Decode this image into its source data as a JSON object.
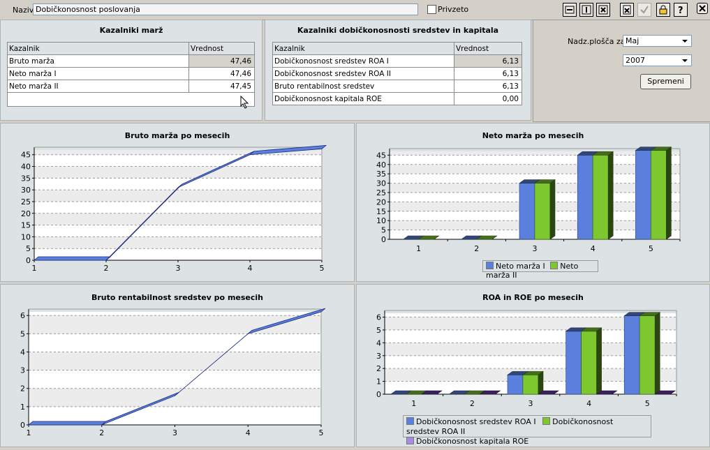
{
  "header": {
    "naziv_label": "Naziv",
    "naziv_value": "Dobičkonosnost poslovanja",
    "privzeto_label": "Privzeto",
    "privzeto_checked": false,
    "toolbar_icons": [
      "column-width-icon",
      "column-height-icon",
      "remove-icon",
      "delete-doc-icon",
      "check-icon",
      "lock-icon",
      "help-icon",
      "close-icon"
    ]
  },
  "marze": {
    "title": "Kazalniki marž",
    "col_name": "Kazalnik",
    "col_value": "Vrednost",
    "rows": [
      {
        "name": "Bruto marža",
        "value": "47,46"
      },
      {
        "name": "Neto marža I",
        "value": "47,46"
      },
      {
        "name": "Neto marža II",
        "value": "47,45"
      }
    ]
  },
  "dobickonosnost": {
    "title": "Kazalniki dobičkonosnosti sredstev in kapitala",
    "col_name": "Kazalnik",
    "col_value": "Vrednost",
    "rows": [
      {
        "name": "Dobičkonosnost sredstev ROA I",
        "value": "6,13"
      },
      {
        "name": "Dobičkonosnost sredstev ROA II",
        "value": "6,13"
      },
      {
        "name": "Bruto rentabilnost sredstev",
        "value": "6,13"
      },
      {
        "name": "Dobičkonosnost kapitala ROE",
        "value": "0,00"
      }
    ]
  },
  "filter": {
    "label": "Nadz.plošča za:",
    "month": "Maj",
    "year": "2007",
    "button": "Spremeni"
  },
  "colors": {
    "blue": "#5b7fdc",
    "green": "#7cc82e",
    "purple": "#6a3aa8"
  },
  "chart_data": [
    {
      "type": "line",
      "title": "Bruto marža po mesecih",
      "x": [
        1,
        2,
        3,
        4,
        5
      ],
      "series": [
        {
          "values": [
            0,
            0,
            31,
            45,
            47.5
          ]
        }
      ],
      "ylim": [
        0,
        47
      ],
      "yticks": [
        0,
        5,
        10,
        15,
        20,
        25,
        30,
        35,
        40,
        45
      ],
      "grid": true
    },
    {
      "type": "bar",
      "title": "Neto marža po mesecih",
      "categories": [
        "1",
        "2",
        "3",
        "4",
        "5"
      ],
      "series": [
        {
          "name": "Neto marža I",
          "values": [
            0,
            0,
            30,
            45,
            47.5
          ]
        },
        {
          "name": "Neto marža II",
          "values": [
            0,
            0,
            30,
            45,
            47.5
          ]
        }
      ],
      "ylim": [
        0,
        47
      ],
      "yticks": [
        0,
        5,
        10,
        15,
        20,
        25,
        30,
        35,
        40,
        45
      ],
      "grid": true,
      "legend": "bottom"
    },
    {
      "type": "line",
      "title": "Bruto rentabilnost sredstev po mesecih",
      "x": [
        1,
        2,
        3,
        4,
        5
      ],
      "series": [
        {
          "values": [
            0,
            0,
            1.6,
            5,
            6.2
          ]
        }
      ],
      "ylim": [
        0,
        6.2
      ],
      "yticks": [
        0,
        1,
        2,
        3,
        4,
        5,
        6
      ],
      "grid": true
    },
    {
      "type": "bar",
      "title": "ROA in ROE po mesecih",
      "categories": [
        "1",
        "2",
        "3",
        "4",
        "5"
      ],
      "series": [
        {
          "name": "Dobičkonosnost sredstev ROA I",
          "values": [
            0,
            0,
            1.5,
            4.9,
            6.1
          ]
        },
        {
          "name": "Dobičkonosnost sredstev ROA II",
          "values": [
            0,
            0,
            1.5,
            4.9,
            6.1
          ]
        },
        {
          "name": "Dobičkonosnost kapitala ROE",
          "values": [
            0,
            0,
            0,
            0,
            0
          ]
        }
      ],
      "ylim": [
        0,
        6.3
      ],
      "yticks": [
        0,
        1,
        2,
        3,
        4,
        5,
        6
      ],
      "grid": true,
      "legend": "bottom"
    }
  ]
}
